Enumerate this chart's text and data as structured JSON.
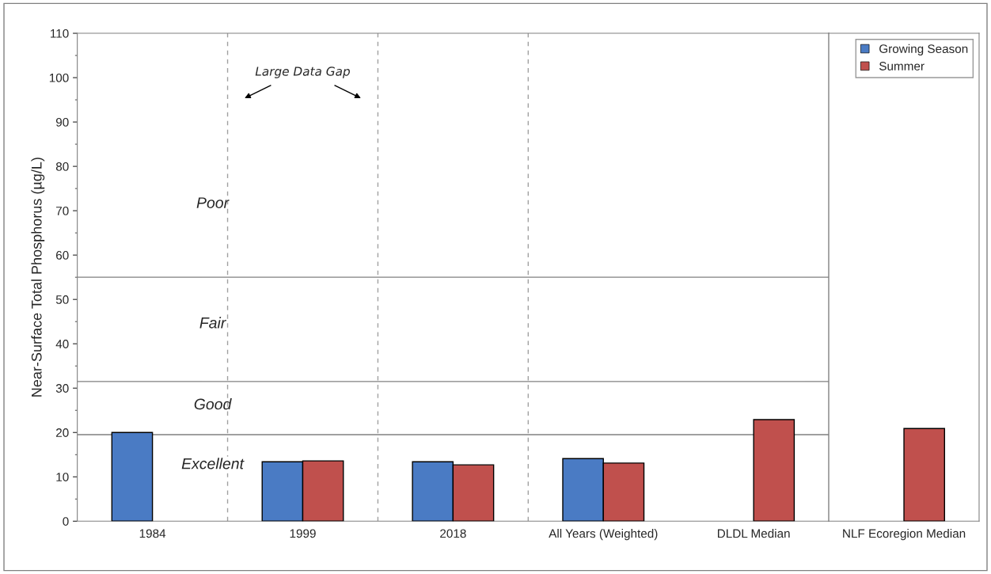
{
  "chart_data": [
    {
      "type": "bar",
      "ylabel": "Near-Surface Total Phosphorus (µg/L)",
      "categories": [
        "1984",
        "1999",
        "2018",
        "All Years (Weighted)",
        "DLDL Median"
      ],
      "series": [
        {
          "color": "#4a7bc4",
          "values": [
            20,
            13.4,
            13.4,
            14.1,
            null
          ]
        },
        {
          "color": "#c0504d",
          "values": [
            null,
            13.6,
            12.7,
            13.1,
            22.9
          ]
        }
      ],
      "ylim": [
        0,
        110
      ],
      "yticks": [
        0,
        10,
        20,
        30,
        40,
        50,
        60,
        70,
        80,
        90,
        100,
        110
      ],
      "ref_lines": [
        {
          "axis": "y",
          "value": 55,
          "color": "#808080",
          "line_style": "solid"
        },
        {
          "axis": "y",
          "value": 31.5,
          "color": "#808080",
          "line_style": "solid"
        },
        {
          "axis": "y",
          "value": 19.5,
          "color": "#808080",
          "line_style": "solid"
        }
      ],
      "annotations": [
        "Poor",
        "Fair",
        "Good",
        "Excellent",
        "Large Data Gap"
      ],
      "grid": false
    },
    {
      "type": "bar",
      "categories": [
        "NLF Ecoregion Median"
      ],
      "series": [
        {
          "name": "Growing Season",
          "color": "#4a7bc4",
          "values": [
            null
          ]
        },
        {
          "name": "Summer",
          "color": "#c0504d",
          "values": [
            20.9
          ]
        }
      ],
      "ylim": [
        0,
        110
      ],
      "tick_labels": "x",
      "legend": "top right",
      "grid": false
    }
  ]
}
